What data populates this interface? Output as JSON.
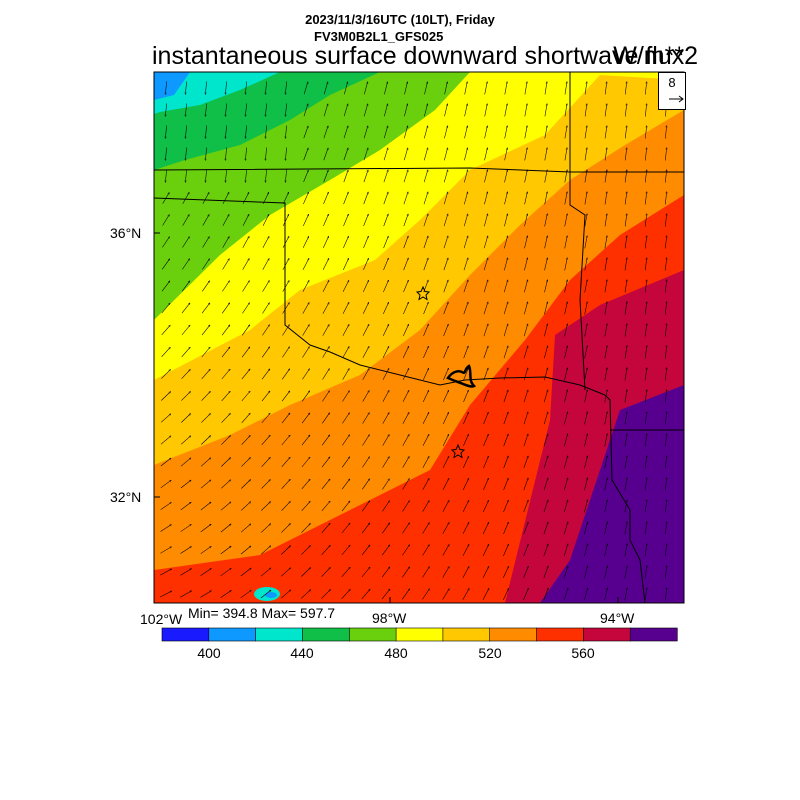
{
  "header": {
    "datetime": "2023/11/3/16UTC (10LT), Friday",
    "model": "FV3M0B2L1_GFS025",
    "field": "instantaneous surface downward shortwave flux",
    "units": "W/m**2"
  },
  "wind_reference": {
    "value": "8"
  },
  "axes": {
    "lat_labels": [
      "36°N",
      "32°N"
    ],
    "lon_labels": [
      "102°W",
      "98°W",
      "94°W"
    ]
  },
  "stats": "Min= 394.8 Max= 597.7",
  "colorbar": {
    "colors": [
      "#1a1aff",
      "#0d99ff",
      "#00e6cc",
      "#0fbf48",
      "#6acf0c",
      "#ffff00",
      "#ffc800",
      "#ff8c00",
      "#ff3000",
      "#c4063c",
      "#570090"
    ],
    "labels": [
      "400",
      "440",
      "480",
      "520",
      "560"
    ]
  },
  "markers": [
    "star",
    "star"
  ]
}
